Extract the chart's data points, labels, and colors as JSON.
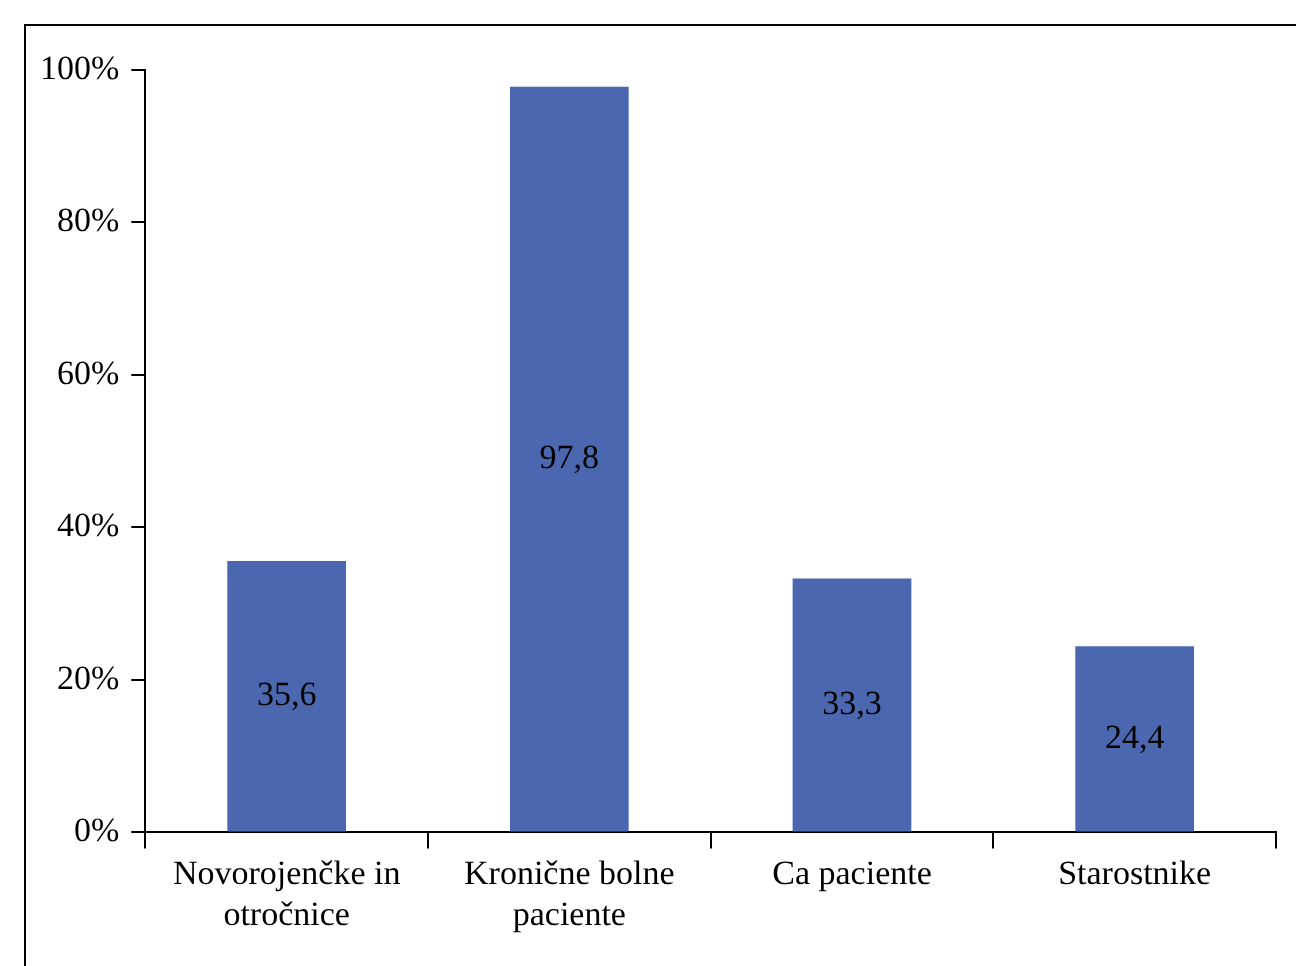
{
  "chart_data": {
    "type": "bar",
    "categories": [
      "Novorojenčke in otročnice",
      "Kronične bolne paciente",
      "Ca paciente",
      "Starostnike"
    ],
    "values": [
      35.6,
      97.8,
      33.3,
      24.4
    ],
    "color": "#4a67b0",
    "value_labels": [
      "35,6",
      "97,8",
      "33,3",
      "24,4"
    ],
    "ylim": [
      0,
      100
    ],
    "yticks": [
      {
        "value": 0,
        "label": "0%"
      },
      {
        "value": 20,
        "label": "20%"
      },
      {
        "value": 40,
        "label": "40%"
      },
      {
        "value": 60,
        "label": "60%"
      },
      {
        "value": 80,
        "label": "80%"
      },
      {
        "value": 100,
        "label": "100%"
      }
    ],
    "grid": false,
    "legend": false
  }
}
